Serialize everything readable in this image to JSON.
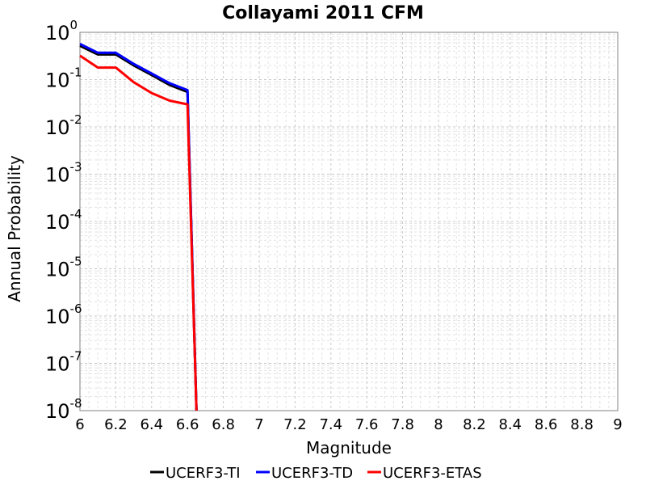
{
  "chart_data": {
    "type": "line",
    "title": "Collayami 2011 CFM",
    "xlabel": "Magnitude",
    "ylabel": "Annual Probability",
    "xlim": [
      6,
      9
    ],
    "ylim": [
      1e-08,
      1
    ],
    "yscale": "log",
    "grid": true,
    "legend_position": "bottom",
    "x_ticks": [
      6,
      6.2,
      6.4,
      6.6,
      6.8,
      7,
      7.2,
      7.4,
      7.6,
      7.8,
      8,
      8.2,
      8.4,
      8.6,
      8.8,
      9
    ],
    "x_tick_labels": [
      "6",
      "6.2",
      "6.4",
      "6.6",
      "6.8",
      "7",
      "7.2",
      "7.4",
      "7.6",
      "7.8",
      "8",
      "8.2",
      "8.4",
      "8.6",
      "8.8",
      "9"
    ],
    "y_ticks": [
      {
        "base": "10",
        "exp": "0"
      },
      {
        "base": "10",
        "exp": "-1"
      },
      {
        "base": "10",
        "exp": "-2"
      },
      {
        "base": "10",
        "exp": "-3"
      },
      {
        "base": "10",
        "exp": "-4"
      },
      {
        "base": "10",
        "exp": "-5"
      },
      {
        "base": "10",
        "exp": "-6"
      },
      {
        "base": "10",
        "exp": "-7"
      },
      {
        "base": "10",
        "exp": "-8"
      }
    ],
    "series": [
      {
        "name": "UCERF3-TI",
        "color": "#000000",
        "x": [
          6.0,
          6.1,
          6.2,
          6.3,
          6.4,
          6.5,
          6.6,
          6.65
        ],
        "y": [
          0.52,
          0.34,
          0.34,
          0.2,
          0.125,
          0.077,
          0.055,
          1e-08
        ]
      },
      {
        "name": "UCERF3-TD",
        "color": "#0000ff",
        "x": [
          6.0,
          6.1,
          6.2,
          6.3,
          6.4,
          6.5,
          6.6,
          6.65
        ],
        "y": [
          0.57,
          0.37,
          0.37,
          0.215,
          0.135,
          0.084,
          0.06,
          1e-08
        ]
      },
      {
        "name": "UCERF3-ETAS",
        "color": "#ff0000",
        "x": [
          6.0,
          6.1,
          6.2,
          6.3,
          6.4,
          6.5,
          6.6,
          6.65
        ],
        "y": [
          0.32,
          0.18,
          0.18,
          0.088,
          0.052,
          0.036,
          0.03,
          1e-08
        ]
      }
    ]
  }
}
